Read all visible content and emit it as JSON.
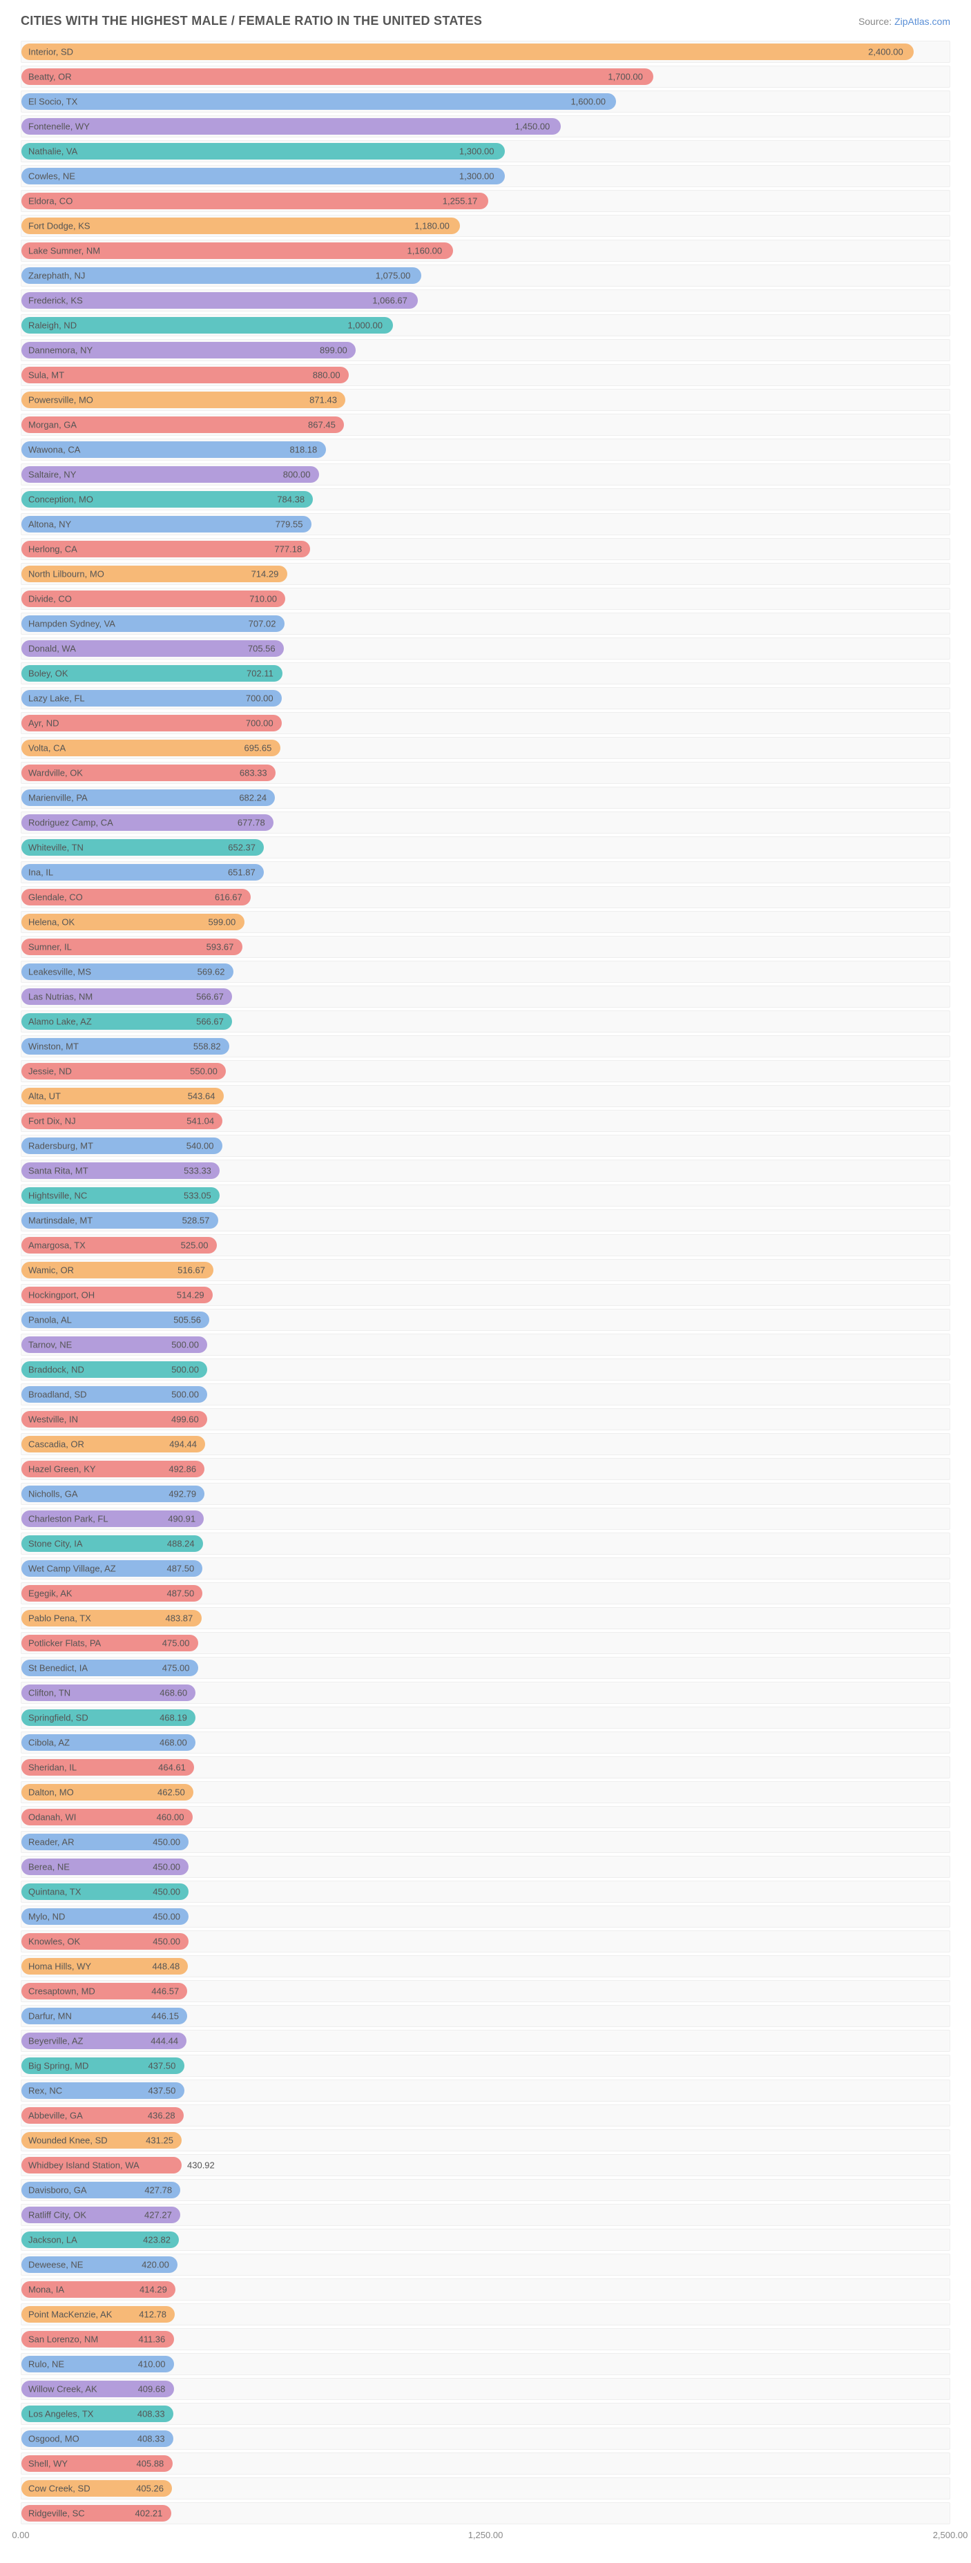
{
  "title": "CITIES WITH THE HIGHEST MALE / FEMALE RATIO IN THE UNITED STATES",
  "source_prefix": "Source: ",
  "source_link": "ZipAtlas.com",
  "chart": {
    "type": "bar",
    "max": 2500,
    "ticks": [
      "0.00",
      "1,250.00",
      "2,500.00"
    ],
    "colors": [
      "#f7b977",
      "#f08f8c",
      "#8fb8e8",
      "#b39ddb",
      "#5ec5c2",
      "#8fb8e8",
      "#f08f8c",
      "#f7b977",
      "#f08f8c",
      "#8fb8e8",
      "#b39ddb",
      "#5ec5c2",
      "#b39ddb",
      "#f08f8c",
      "#f7b977",
      "#f08f8c",
      "#8fb8e8",
      "#b39ddb",
      "#5ec5c2",
      "#8fb8e8",
      "#f08f8c",
      "#f7b977",
      "#f08f8c",
      "#8fb8e8",
      "#b39ddb",
      "#5ec5c2",
      "#8fb8e8",
      "#f08f8c",
      "#f7b977",
      "#f08f8c",
      "#8fb8e8",
      "#b39ddb",
      "#5ec5c2",
      "#8fb8e8",
      "#f08f8c",
      "#f7b977",
      "#f08f8c",
      "#8fb8e8",
      "#b39ddb",
      "#5ec5c2",
      "#8fb8e8",
      "#f08f8c",
      "#f7b977",
      "#f08f8c",
      "#8fb8e8",
      "#b39ddb",
      "#5ec5c2",
      "#8fb8e8",
      "#f08f8c",
      "#f7b977",
      "#f08f8c",
      "#8fb8e8",
      "#b39ddb",
      "#5ec5c2",
      "#8fb8e8",
      "#f08f8c",
      "#f7b977",
      "#f08f8c",
      "#8fb8e8",
      "#b39ddb",
      "#5ec5c2",
      "#8fb8e8",
      "#f08f8c",
      "#f7b977",
      "#f08f8c",
      "#8fb8e8",
      "#b39ddb",
      "#5ec5c2",
      "#8fb8e8",
      "#f08f8c",
      "#f7b977",
      "#f08f8c",
      "#8fb8e8",
      "#b39ddb",
      "#5ec5c2",
      "#8fb8e8",
      "#f08f8c",
      "#f7b977",
      "#f08f8c",
      "#8fb8e8",
      "#b39ddb",
      "#5ec5c2",
      "#8fb8e8",
      "#f08f8c",
      "#f7b977",
      "#f08f8c",
      "#8fb8e8",
      "#b39ddb",
      "#5ec5c2",
      "#8fb8e8",
      "#f08f8c",
      "#f7b977",
      "#f08f8c",
      "#8fb8e8",
      "#b39ddb",
      "#5ec5c2",
      "#8fb8e8",
      "#f08f8c",
      "#f7b977",
      "#f08f8c"
    ],
    "rows": [
      {
        "label": "Interior, SD",
        "value": 2400.0,
        "display": "2,400.00"
      },
      {
        "label": "Beatty, OR",
        "value": 1700.0,
        "display": "1,700.00"
      },
      {
        "label": "El Socio, TX",
        "value": 1600.0,
        "display": "1,600.00"
      },
      {
        "label": "Fontenelle, WY",
        "value": 1450.0,
        "display": "1,450.00"
      },
      {
        "label": "Nathalie, VA",
        "value": 1300.0,
        "display": "1,300.00"
      },
      {
        "label": "Cowles, NE",
        "value": 1300.0,
        "display": "1,300.00"
      },
      {
        "label": "Eldora, CO",
        "value": 1255.17,
        "display": "1,255.17"
      },
      {
        "label": "Fort Dodge, KS",
        "value": 1180.0,
        "display": "1,180.00"
      },
      {
        "label": "Lake Sumner, NM",
        "value": 1160.0,
        "display": "1,160.00"
      },
      {
        "label": "Zarephath, NJ",
        "value": 1075.0,
        "display": "1,075.00"
      },
      {
        "label": "Frederick, KS",
        "value": 1066.67,
        "display": "1,066.67"
      },
      {
        "label": "Raleigh, ND",
        "value": 1000.0,
        "display": "1,000.00"
      },
      {
        "label": "Dannemora, NY",
        "value": 899.0,
        "display": "899.00"
      },
      {
        "label": "Sula, MT",
        "value": 880.0,
        "display": "880.00"
      },
      {
        "label": "Powersville, MO",
        "value": 871.43,
        "display": "871.43"
      },
      {
        "label": "Morgan, GA",
        "value": 867.45,
        "display": "867.45"
      },
      {
        "label": "Wawona, CA",
        "value": 818.18,
        "display": "818.18"
      },
      {
        "label": "Saltaire, NY",
        "value": 800.0,
        "display": "800.00"
      },
      {
        "label": "Conception, MO",
        "value": 784.38,
        "display": "784.38"
      },
      {
        "label": "Altona, NY",
        "value": 779.55,
        "display": "779.55"
      },
      {
        "label": "Herlong, CA",
        "value": 777.18,
        "display": "777.18"
      },
      {
        "label": "North Lilbourn, MO",
        "value": 714.29,
        "display": "714.29"
      },
      {
        "label": "Divide, CO",
        "value": 710.0,
        "display": "710.00"
      },
      {
        "label": "Hampden Sydney, VA",
        "value": 707.02,
        "display": "707.02"
      },
      {
        "label": "Donald, WA",
        "value": 705.56,
        "display": "705.56"
      },
      {
        "label": "Boley, OK",
        "value": 702.11,
        "display": "702.11"
      },
      {
        "label": "Lazy Lake, FL",
        "value": 700.0,
        "display": "700.00"
      },
      {
        "label": "Ayr, ND",
        "value": 700.0,
        "display": "700.00"
      },
      {
        "label": "Volta, CA",
        "value": 695.65,
        "display": "695.65"
      },
      {
        "label": "Wardville, OK",
        "value": 683.33,
        "display": "683.33"
      },
      {
        "label": "Marienville, PA",
        "value": 682.24,
        "display": "682.24"
      },
      {
        "label": "Rodriguez Camp, CA",
        "value": 677.78,
        "display": "677.78"
      },
      {
        "label": "Whiteville, TN",
        "value": 652.37,
        "display": "652.37"
      },
      {
        "label": "Ina, IL",
        "value": 651.87,
        "display": "651.87"
      },
      {
        "label": "Glendale, CO",
        "value": 616.67,
        "display": "616.67"
      },
      {
        "label": "Helena, OK",
        "value": 599.0,
        "display": "599.00"
      },
      {
        "label": "Sumner, IL",
        "value": 593.67,
        "display": "593.67"
      },
      {
        "label": "Leakesville, MS",
        "value": 569.62,
        "display": "569.62"
      },
      {
        "label": "Las Nutrias, NM",
        "value": 566.67,
        "display": "566.67"
      },
      {
        "label": "Alamo Lake, AZ",
        "value": 566.67,
        "display": "566.67"
      },
      {
        "label": "Winston, MT",
        "value": 558.82,
        "display": "558.82"
      },
      {
        "label": "Jessie, ND",
        "value": 550.0,
        "display": "550.00"
      },
      {
        "label": "Alta, UT",
        "value": 543.64,
        "display": "543.64"
      },
      {
        "label": "Fort Dix, NJ",
        "value": 541.04,
        "display": "541.04"
      },
      {
        "label": "Radersburg, MT",
        "value": 540.0,
        "display": "540.00"
      },
      {
        "label": "Santa Rita, MT",
        "value": 533.33,
        "display": "533.33"
      },
      {
        "label": "Hightsville, NC",
        "value": 533.05,
        "display": "533.05"
      },
      {
        "label": "Martinsdale, MT",
        "value": 528.57,
        "display": "528.57"
      },
      {
        "label": "Amargosa, TX",
        "value": 525.0,
        "display": "525.00"
      },
      {
        "label": "Wamic, OR",
        "value": 516.67,
        "display": "516.67"
      },
      {
        "label": "Hockingport, OH",
        "value": 514.29,
        "display": "514.29"
      },
      {
        "label": "Panola, AL",
        "value": 505.56,
        "display": "505.56"
      },
      {
        "label": "Tarnov, NE",
        "value": 500.0,
        "display": "500.00"
      },
      {
        "label": "Braddock, ND",
        "value": 500.0,
        "display": "500.00"
      },
      {
        "label": "Broadland, SD",
        "value": 500.0,
        "display": "500.00"
      },
      {
        "label": "Westville, IN",
        "value": 499.6,
        "display": "499.60"
      },
      {
        "label": "Cascadia, OR",
        "value": 494.44,
        "display": "494.44"
      },
      {
        "label": "Hazel Green, KY",
        "value": 492.86,
        "display": "492.86"
      },
      {
        "label": "Nicholls, GA",
        "value": 492.79,
        "display": "492.79"
      },
      {
        "label": "Charleston Park, FL",
        "value": 490.91,
        "display": "490.91"
      },
      {
        "label": "Stone City, IA",
        "value": 488.24,
        "display": "488.24"
      },
      {
        "label": "Wet Camp Village, AZ",
        "value": 487.5,
        "display": "487.50"
      },
      {
        "label": "Egegik, AK",
        "value": 487.5,
        "display": "487.50"
      },
      {
        "label": "Pablo Pena, TX",
        "value": 483.87,
        "display": "483.87"
      },
      {
        "label": "Potlicker Flats, PA",
        "value": 475.0,
        "display": "475.00"
      },
      {
        "label": "St Benedict, IA",
        "value": 475.0,
        "display": "475.00"
      },
      {
        "label": "Clifton, TN",
        "value": 468.6,
        "display": "468.60"
      },
      {
        "label": "Springfield, SD",
        "value": 468.19,
        "display": "468.19"
      },
      {
        "label": "Cibola, AZ",
        "value": 468.0,
        "display": "468.00"
      },
      {
        "label": "Sheridan, IL",
        "value": 464.61,
        "display": "464.61"
      },
      {
        "label": "Dalton, MO",
        "value": 462.5,
        "display": "462.50"
      },
      {
        "label": "Odanah, WI",
        "value": 460.0,
        "display": "460.00"
      },
      {
        "label": "Reader, AR",
        "value": 450.0,
        "display": "450.00"
      },
      {
        "label": "Berea, NE",
        "value": 450.0,
        "display": "450.00"
      },
      {
        "label": "Quintana, TX",
        "value": 450.0,
        "display": "450.00"
      },
      {
        "label": "Mylo, ND",
        "value": 450.0,
        "display": "450.00"
      },
      {
        "label": "Knowles, OK",
        "value": 450.0,
        "display": "450.00"
      },
      {
        "label": "Homa Hills, WY",
        "value": 448.48,
        "display": "448.48"
      },
      {
        "label": "Cresaptown, MD",
        "value": 446.57,
        "display": "446.57"
      },
      {
        "label": "Darfur, MN",
        "value": 446.15,
        "display": "446.15"
      },
      {
        "label": "Beyerville, AZ",
        "value": 444.44,
        "display": "444.44"
      },
      {
        "label": "Big Spring, MD",
        "value": 437.5,
        "display": "437.50"
      },
      {
        "label": "Rex, NC",
        "value": 437.5,
        "display": "437.50"
      },
      {
        "label": "Abbeville, GA",
        "value": 436.28,
        "display": "436.28"
      },
      {
        "label": "Wounded Knee, SD",
        "value": 431.25,
        "display": "431.25"
      },
      {
        "label": "Whidbey Island Station, WA",
        "value": 430.92,
        "display": "430.92"
      },
      {
        "label": "Davisboro, GA",
        "value": 427.78,
        "display": "427.78"
      },
      {
        "label": "Ratliff City, OK",
        "value": 427.27,
        "display": "427.27"
      },
      {
        "label": "Jackson, LA",
        "value": 423.82,
        "display": "423.82"
      },
      {
        "label": "Deweese, NE",
        "value": 420.0,
        "display": "420.00"
      },
      {
        "label": "Mona, IA",
        "value": 414.29,
        "display": "414.29"
      },
      {
        "label": "Point MacKenzie, AK",
        "value": 412.78,
        "display": "412.78"
      },
      {
        "label": "San Lorenzo, NM",
        "value": 411.36,
        "display": "411.36"
      },
      {
        "label": "Rulo, NE",
        "value": 410.0,
        "display": "410.00"
      },
      {
        "label": "Willow Creek, AK",
        "value": 409.68,
        "display": "409.68"
      },
      {
        "label": "Los Angeles, TX",
        "value": 408.33,
        "display": "408.33"
      },
      {
        "label": "Osgood, MO",
        "value": 408.33,
        "display": "408.33"
      },
      {
        "label": "Shell, WY",
        "value": 405.88,
        "display": "405.88"
      },
      {
        "label": "Cow Creek, SD",
        "value": 405.26,
        "display": "405.26"
      },
      {
        "label": "Ridgeville, SC",
        "value": 402.21,
        "display": "402.21"
      }
    ]
  }
}
